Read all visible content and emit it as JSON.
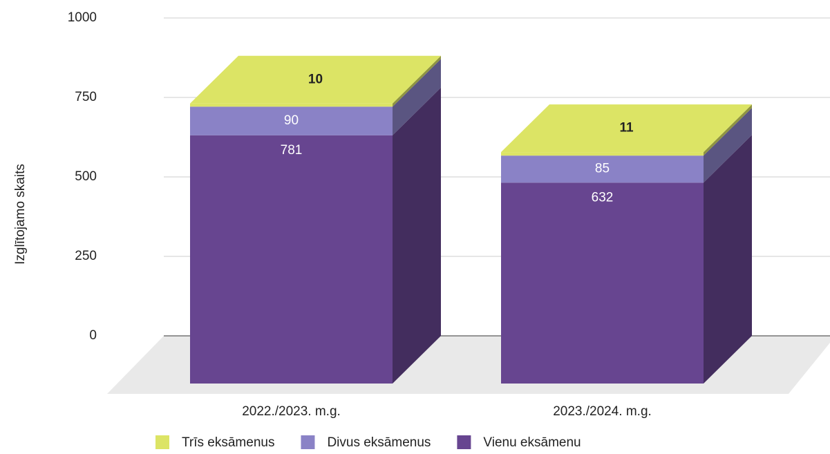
{
  "chart_data": {
    "type": "bar3d_stacked",
    "y_label": "Izglītojamo skaits",
    "categories": [
      "2022./2023. m.g.",
      "2023./2024. m.g."
    ],
    "series": [
      {
        "name": "Vienu eksāmenu",
        "color": "#674590",
        "values": [
          781,
          632
        ]
      },
      {
        "name": "Divus eksāmenus",
        "color": "#8a82c6",
        "values": [
          90,
          85
        ]
      },
      {
        "name": "Trīs eksāmenus",
        "color": "#dce465",
        "values": [
          10,
          11
        ]
      }
    ],
    "ylim": [
      0,
      1000
    ],
    "yticks": [
      0,
      250,
      500,
      750,
      1000
    ],
    "grid": true
  }
}
